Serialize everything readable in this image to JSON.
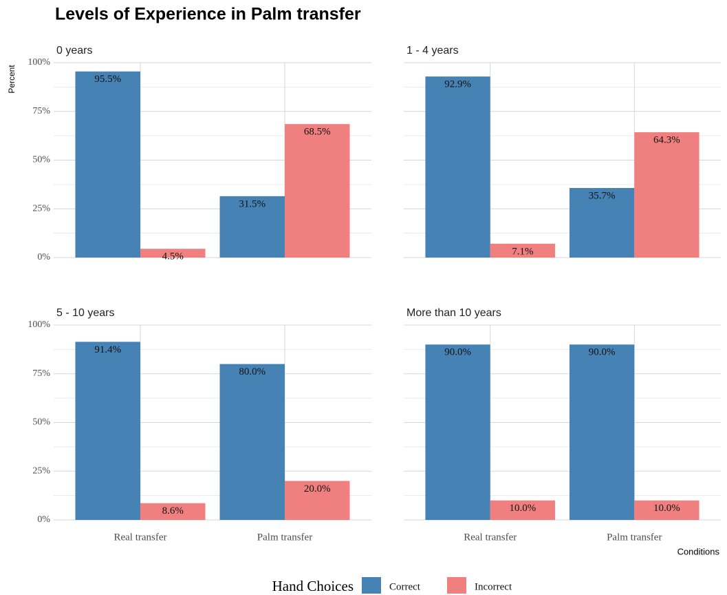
{
  "title": "Levels of Experience in Palm transfer",
  "y_label": "Percent",
  "x_label": "Conditions",
  "legend_title": "Hand Choices",
  "chart_data": [
    {
      "type": "bar",
      "title": "0 years",
      "categories": [
        "Real transfer",
        "Palm transfer"
      ],
      "series": [
        {
          "name": "Correct",
          "color": "#4682b4",
          "values": [
            95.5,
            31.5
          ],
          "value_labels": [
            "95.5%",
            "31.5%"
          ]
        },
        {
          "name": "Incorrect",
          "color": "#f08080",
          "values": [
            4.5,
            68.5
          ],
          "value_labels": [
            "4.5%",
            "68.5%"
          ]
        }
      ],
      "ylim": [
        0,
        100
      ],
      "yticks": [
        {
          "value": 0,
          "label": "0%"
        },
        {
          "value": 25,
          "label": "25%"
        },
        {
          "value": 50,
          "label": "50%"
        },
        {
          "value": 75,
          "label": "75%"
        },
        {
          "value": 100,
          "label": "100%"
        }
      ],
      "grid": true
    },
    {
      "type": "bar",
      "title": "1 - 4 years",
      "categories": [
        "Real transfer",
        "Palm transfer"
      ],
      "series": [
        {
          "name": "Correct",
          "color": "#4682b4",
          "values": [
            92.9,
            35.7
          ],
          "value_labels": [
            "92.9%",
            "35.7%"
          ]
        },
        {
          "name": "Incorrect",
          "color": "#f08080",
          "values": [
            7.1,
            64.3
          ],
          "value_labels": [
            "7.1%",
            "64.3%"
          ]
        }
      ],
      "ylim": [
        0,
        100
      ],
      "yticks": [
        {
          "value": 0,
          "label": "0%"
        },
        {
          "value": 25,
          "label": "25%"
        },
        {
          "value": 50,
          "label": "50%"
        },
        {
          "value": 75,
          "label": "75%"
        },
        {
          "value": 100,
          "label": "100%"
        }
      ],
      "grid": true
    },
    {
      "type": "bar",
      "title": "5 - 10 years",
      "categories": [
        "Real transfer",
        "Palm transfer"
      ],
      "series": [
        {
          "name": "Correct",
          "color": "#4682b4",
          "values": [
            91.4,
            80.0
          ],
          "value_labels": [
            "91.4%",
            "80.0%"
          ]
        },
        {
          "name": "Incorrect",
          "color": "#f08080",
          "values": [
            8.6,
            20.0
          ],
          "value_labels": [
            "8.6%",
            "20.0%"
          ]
        }
      ],
      "ylim": [
        0,
        100
      ],
      "yticks": [
        {
          "value": 0,
          "label": "0%"
        },
        {
          "value": 25,
          "label": "25%"
        },
        {
          "value": 50,
          "label": "50%"
        },
        {
          "value": 75,
          "label": "75%"
        },
        {
          "value": 100,
          "label": "100%"
        }
      ],
      "grid": true
    },
    {
      "type": "bar",
      "title": "More than 10 years",
      "categories": [
        "Real transfer",
        "Palm transfer"
      ],
      "series": [
        {
          "name": "Correct",
          "color": "#4682b4",
          "values": [
            90.0,
            90.0
          ],
          "value_labels": [
            "90.0%",
            "90.0%"
          ]
        },
        {
          "name": "Incorrect",
          "color": "#f08080",
          "values": [
            10.0,
            10.0
          ],
          "value_labels": [
            "10.0%",
            "10.0%"
          ]
        }
      ],
      "ylim": [
        0,
        100
      ],
      "yticks": [
        {
          "value": 0,
          "label": "0%"
        },
        {
          "value": 25,
          "label": "25%"
        },
        {
          "value": 50,
          "label": "50%"
        },
        {
          "value": 75,
          "label": "75%"
        },
        {
          "value": 100,
          "label": "100%"
        }
      ],
      "grid": true
    }
  ]
}
